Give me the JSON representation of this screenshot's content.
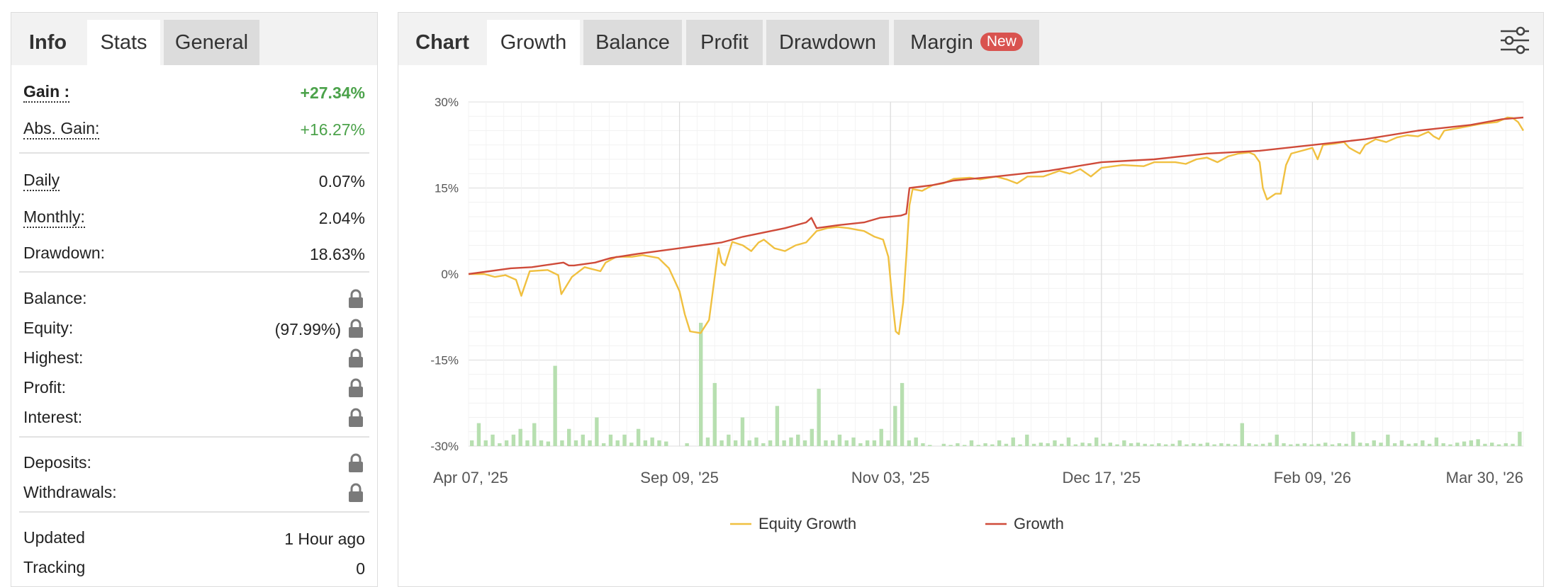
{
  "left_tabs": {
    "info": "Info",
    "stats": "Stats",
    "general": "General"
  },
  "stats": {
    "gain": {
      "label": "Gain :",
      "value": "+27.34%"
    },
    "abs_gain": {
      "label": "Abs. Gain:",
      "value": "+16.27%"
    },
    "daily": {
      "label": "Daily",
      "value": "0.07%"
    },
    "monthly": {
      "label": "Monthly:",
      "value": "2.04%"
    },
    "drawdown": {
      "label": "Drawdown:",
      "value": "18.63%"
    },
    "balance": {
      "label": "Balance:"
    },
    "equity": {
      "label": "Equity:",
      "value": "(97.99%)"
    },
    "highest": {
      "label": "Highest:"
    },
    "profit": {
      "label": "Profit:"
    },
    "interest": {
      "label": "Interest:"
    },
    "deposits": {
      "label": "Deposits:"
    },
    "withdrawals": {
      "label": "Withdrawals:"
    },
    "updated": {
      "label": "Updated",
      "value": "1 Hour ago"
    },
    "tracking": {
      "label": "Tracking",
      "value": "0"
    }
  },
  "right_tabs": {
    "chart": "Chart",
    "growth": "Growth",
    "balance": "Balance",
    "profit": "Profit",
    "drawdown": "Drawdown",
    "margin": "Margin",
    "margin_badge": "New"
  },
  "icons": {
    "lock": "lock-icon",
    "settings": "sliders-icon"
  },
  "colors": {
    "equity": "#f0c040",
    "growth": "#cf4b3a",
    "bars": "#b7dfb0",
    "gain_green": "#4ba24a",
    "badge": "#d9534f"
  },
  "chart_data": {
    "type": "line",
    "x_tick_labels": [
      "Apr 07, '25",
      "Sep 09, '25",
      "Nov 03, '25",
      "Dec 17, '25",
      "Feb 09, '26",
      "Mar 30, '26"
    ],
    "y_tick_labels": [
      "30%",
      "15%",
      "0%",
      "-15%",
      "-30%"
    ],
    "ylim": [
      -30,
      30
    ],
    "grid": true,
    "legend_position": "bottom",
    "series": [
      {
        "name": "Equity Growth",
        "points": [
          [
            0,
            0
          ],
          [
            0.015,
            0
          ],
          [
            0.025,
            -0.5
          ],
          [
            0.035,
            -0.2
          ],
          [
            0.045,
            -1
          ],
          [
            0.05,
            -3.8
          ],
          [
            0.058,
            0.5
          ],
          [
            0.075,
            0.7
          ],
          [
            0.085,
            -0.2
          ],
          [
            0.088,
            -3.5
          ],
          [
            0.098,
            -0.5
          ],
          [
            0.11,
            1.2
          ],
          [
            0.125,
            0.5
          ],
          [
            0.13,
            2
          ],
          [
            0.14,
            3
          ],
          [
            0.155,
            3
          ],
          [
            0.165,
            3.3
          ],
          [
            0.18,
            2.8
          ],
          [
            0.19,
            1
          ],
          [
            0.2,
            -3
          ],
          [
            0.205,
            -7
          ],
          [
            0.21,
            -10
          ],
          [
            0.22,
            -10.3
          ],
          [
            0.228,
            -8
          ],
          [
            0.233,
            -1
          ],
          [
            0.237,
            4.5
          ],
          [
            0.24,
            2
          ],
          [
            0.243,
            1.5
          ],
          [
            0.25,
            5.6
          ],
          [
            0.26,
            5
          ],
          [
            0.268,
            4
          ],
          [
            0.275,
            5.5
          ],
          [
            0.28,
            6
          ],
          [
            0.29,
            4.5
          ],
          [
            0.3,
            4
          ],
          [
            0.31,
            5
          ],
          [
            0.32,
            5.5
          ],
          [
            0.33,
            7.5
          ],
          [
            0.34,
            8
          ],
          [
            0.35,
            8.2
          ],
          [
            0.36,
            8
          ],
          [
            0.375,
            7.5
          ],
          [
            0.385,
            6.5
          ],
          [
            0.393,
            6
          ],
          [
            0.398,
            3
          ],
          [
            0.402,
            -5
          ],
          [
            0.405,
            -10
          ],
          [
            0.408,
            -10.5
          ],
          [
            0.412,
            -5
          ],
          [
            0.415,
            3
          ],
          [
            0.418,
            12
          ],
          [
            0.421,
            14.8
          ],
          [
            0.43,
            14.5
          ],
          [
            0.44,
            15.5
          ],
          [
            0.45,
            15.8
          ],
          [
            0.46,
            16.6
          ],
          [
            0.475,
            16.8
          ],
          [
            0.485,
            16.5
          ],
          [
            0.5,
            17
          ],
          [
            0.51,
            16.5
          ],
          [
            0.52,
            15.8
          ],
          [
            0.53,
            17
          ],
          [
            0.545,
            17
          ],
          [
            0.56,
            18
          ],
          [
            0.57,
            17.5
          ],
          [
            0.58,
            18.3
          ],
          [
            0.59,
            17
          ],
          [
            0.6,
            18.5
          ],
          [
            0.62,
            19
          ],
          [
            0.64,
            18.8
          ],
          [
            0.65,
            19.5
          ],
          [
            0.67,
            19.5
          ],
          [
            0.68,
            19.2
          ],
          [
            0.69,
            20
          ],
          [
            0.7,
            20.3
          ],
          [
            0.71,
            19.5
          ],
          [
            0.72,
            20.5
          ],
          [
            0.73,
            21
          ],
          [
            0.74,
            21.2
          ],
          [
            0.745,
            20.8
          ],
          [
            0.75,
            19.5
          ],
          [
            0.753,
            15
          ],
          [
            0.757,
            13
          ],
          [
            0.765,
            14
          ],
          [
            0.77,
            14
          ],
          [
            0.775,
            19
          ],
          [
            0.78,
            21
          ],
          [
            0.79,
            21.5
          ],
          [
            0.8,
            22
          ],
          [
            0.805,
            20
          ],
          [
            0.81,
            22.5
          ],
          [
            0.82,
            22.7
          ],
          [
            0.83,
            23
          ],
          [
            0.835,
            22
          ],
          [
            0.84,
            21.5
          ],
          [
            0.845,
            21
          ],
          [
            0.85,
            22.5
          ],
          [
            0.86,
            23.5
          ],
          [
            0.87,
            23
          ],
          [
            0.88,
            23.8
          ],
          [
            0.89,
            24.2
          ],
          [
            0.9,
            24
          ],
          [
            0.91,
            24.8
          ],
          [
            0.915,
            24
          ],
          [
            0.92,
            23.5
          ],
          [
            0.925,
            25
          ],
          [
            0.94,
            25.5
          ],
          [
            0.96,
            26.2
          ],
          [
            0.975,
            26.5
          ],
          [
            0.985,
            27.3
          ],
          [
            0.99,
            27.2
          ],
          [
            0.995,
            26.5
          ],
          [
            1.0,
            25
          ]
        ]
      },
      {
        "name": "Growth",
        "points": [
          [
            0,
            0
          ],
          [
            0.02,
            0.5
          ],
          [
            0.04,
            1
          ],
          [
            0.06,
            1.2
          ],
          [
            0.09,
            2
          ],
          [
            0.095,
            1.5
          ],
          [
            0.1,
            1.5
          ],
          [
            0.12,
            2
          ],
          [
            0.135,
            2.8
          ],
          [
            0.16,
            3.5
          ],
          [
            0.18,
            4
          ],
          [
            0.2,
            4.5
          ],
          [
            0.22,
            5
          ],
          [
            0.24,
            5.5
          ],
          [
            0.26,
            6.5
          ],
          [
            0.3,
            8
          ],
          [
            0.32,
            9
          ],
          [
            0.325,
            9.8
          ],
          [
            0.33,
            8
          ],
          [
            0.35,
            8.5
          ],
          [
            0.375,
            9
          ],
          [
            0.39,
            9.8
          ],
          [
            0.41,
            10.2
          ],
          [
            0.415,
            10.5
          ],
          [
            0.418,
            15
          ],
          [
            0.44,
            15.5
          ],
          [
            0.46,
            16.3
          ],
          [
            0.5,
            17
          ],
          [
            0.55,
            18
          ],
          [
            0.6,
            19.5
          ],
          [
            0.65,
            20
          ],
          [
            0.7,
            21
          ],
          [
            0.75,
            21.5
          ],
          [
            0.8,
            22.5
          ],
          [
            0.85,
            23.5
          ],
          [
            0.9,
            25
          ],
          [
            0.95,
            26
          ],
          [
            0.98,
            27
          ],
          [
            1.0,
            27.3
          ]
        ]
      }
    ],
    "bars": [
      1,
      4,
      1,
      2,
      0.5,
      1,
      2,
      3,
      1,
      4,
      1,
      0.8,
      14,
      1,
      3,
      1,
      2,
      1,
      5,
      0.5,
      2,
      1,
      2,
      0.6,
      3,
      1,
      1.5,
      1,
      0.8,
      0,
      0,
      0.5,
      0,
      21.5,
      1.5,
      11,
      1,
      2,
      1,
      5,
      1,
      1.5,
      0.5,
      1,
      7,
      1,
      1.5,
      2,
      1,
      3,
      10,
      1,
      1,
      2,
      1,
      1.5,
      0.5,
      1,
      1,
      3,
      1,
      7,
      11,
      1,
      1.5,
      0.5,
      0.2,
      0,
      0.4,
      0.2,
      0.5,
      0.2,
      1,
      0.2,
      0.5,
      0.3,
      1,
      0.4,
      1.5,
      0.3,
      2,
      0.4,
      0.6,
      0.5,
      1,
      0.4,
      1.5,
      0.3,
      0.6,
      0.5,
      1.5,
      0.4,
      0.6,
      0.3,
      1,
      0.5,
      0.6,
      0.4,
      0.3,
      0.5,
      0.3,
      0.4,
      1,
      0.3,
      0.5,
      0.4,
      0.6,
      0.3,
      0.5,
      0.4,
      0.3,
      4,
      0.5,
      0.3,
      0.4,
      0.6,
      2,
      0.5,
      0.3,
      0.4,
      0.5,
      0.3,
      0.4,
      0.6,
      0.3,
      0.5,
      0.4,
      2.5,
      0.6,
      0.5,
      1,
      0.6,
      2,
      0.5,
      1,
      0.4,
      0.5,
      1,
      0.4,
      1.5,
      0.5,
      0.3,
      0.6,
      0.8,
      1,
      1.2,
      0.4,
      0.6,
      0.3,
      0.5,
      0.4,
      2.5
    ]
  }
}
